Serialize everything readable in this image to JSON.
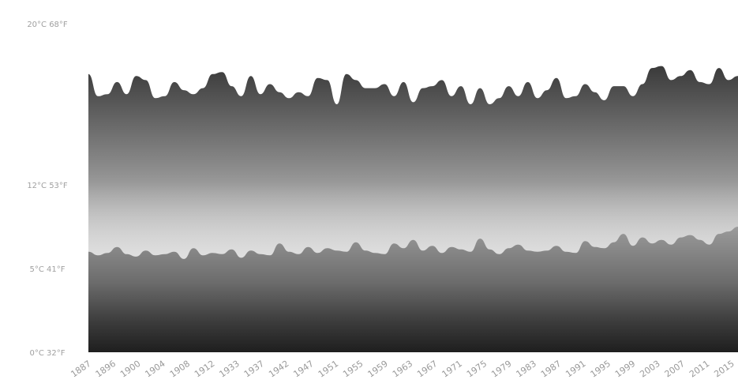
{
  "chart_data": {
    "type": "area",
    "title": "",
    "xlabel": "",
    "ylabel": "",
    "y_ticks": [
      {
        "value": 0,
        "label": "0°C 32°F"
      },
      {
        "value": 5,
        "label": "5°C 41°F"
      },
      {
        "value": 12,
        "label": "12°C 53°F"
      },
      {
        "value": 20,
        "label": "20°C 68°F"
      }
    ],
    "ylim": [
      0,
      20
    ],
    "x_tick_labels": [
      "1887",
      "1896",
      "1900",
      "1904",
      "1908",
      "1912",
      "1933",
      "1937",
      "1942",
      "1947",
      "1951",
      "1955",
      "1959",
      "1963",
      "1967",
      "1971",
      "1975",
      "1979",
      "1983",
      "1987",
      "1991",
      "1995",
      "1999",
      "2003",
      "2007",
      "2011",
      "2015"
    ],
    "grid": false,
    "series": [
      {
        "values": [
          17.5,
          16.4,
          16.5,
          17.1,
          16.5,
          17.4,
          17.2,
          16.3,
          16.4,
          17.1,
          16.7,
          16.5,
          16.8,
          17.5,
          17.6,
          16.9,
          16.4,
          17.4,
          16.5,
          17.0,
          16.6,
          16.3,
          16.6,
          16.4,
          17.3,
          17.2,
          16.0,
          17.5,
          17.2,
          16.8,
          16.8,
          17.0,
          16.4,
          17.1,
          16.1,
          16.8,
          16.9,
          17.2,
          16.4,
          16.9,
          16.0,
          16.8,
          16.0,
          16.3,
          16.9,
          16.4,
          17.1,
          16.3,
          16.7,
          17.3,
          16.3,
          16.4,
          17.0,
          16.6,
          16.2,
          16.9,
          16.9,
          16.4,
          17.0,
          17.8,
          17.9,
          17.2,
          17.4,
          17.7,
          17.1,
          17.0,
          17.8,
          17.2,
          17.4
        ],
        "fill": "top-band"
      },
      {
        "values": [
          6.4,
          6.1,
          6.3,
          6.8,
          6.2,
          6.0,
          6.5,
          6.1,
          6.2,
          6.4,
          5.8,
          6.7,
          6.1,
          6.3,
          6.2,
          6.6,
          5.9,
          6.5,
          6.2,
          6.1,
          7.1,
          6.4,
          6.2,
          6.8,
          6.3,
          6.7,
          6.5,
          6.4,
          7.2,
          6.5,
          6.3,
          6.2,
          7.1,
          6.7,
          7.4,
          6.5,
          6.9,
          6.3,
          6.8,
          6.6,
          6.4,
          7.5,
          6.6,
          6.2,
          6.7,
          7.0,
          6.5,
          6.4,
          6.5,
          6.9,
          6.4,
          6.3,
          7.3,
          6.8,
          6.7,
          7.2,
          7.9,
          6.9,
          7.6,
          7.1,
          7.4,
          7.0,
          7.6,
          7.8,
          7.4,
          7.0,
          7.9,
          8.1,
          8.5
        ],
        "fill": "bottom-band"
      }
    ]
  }
}
